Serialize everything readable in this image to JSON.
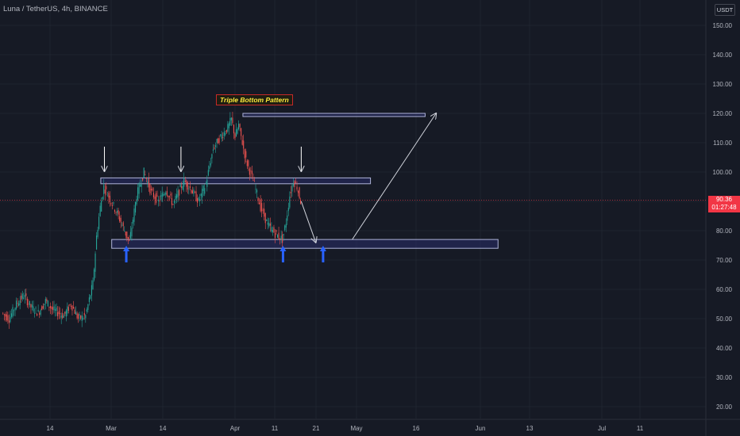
{
  "header": {
    "symbol": "Luna / TetherUS, 4h, BINANCE",
    "currency": "USDT"
  },
  "price_label": {
    "price": "90.36",
    "countdown": "01:27:48"
  },
  "annotation": {
    "pattern": "Triple Bottom Pattern"
  },
  "colors": {
    "background": "#161a25",
    "up_candle": "#26a69a",
    "down_candle": "#ef5350",
    "zone_fill": "#2a2e6a",
    "arrow_blue": "#2962ff",
    "price_line": "#f23645"
  },
  "icons": [
    "down-arrow-icon",
    "up-arrow-icon",
    "projection-arrow-icon"
  ],
  "chart_data": {
    "type": "candlestick",
    "y_axis": {
      "range": [
        10,
        155
      ],
      "ticks": [
        "150.00",
        "140.00",
        "130.00",
        "120.00",
        "110.00",
        "100.00",
        "90.00",
        "80.00",
        "70.00",
        "60.00",
        "50.00",
        "40.00",
        "30.00",
        "20.00"
      ]
    },
    "x_axis": {
      "ticks": [
        "14",
        "Mar",
        "14",
        "Apr",
        "11",
        "21",
        "May",
        "16",
        "Jun",
        "13",
        "Jul",
        "11"
      ]
    },
    "current_price": 90.36,
    "series_path": [
      {
        "date": "2022-02-01",
        "price": 52
      },
      {
        "date": "2022-02-03",
        "price": 50
      },
      {
        "date": "2022-02-05",
        "price": 55
      },
      {
        "date": "2022-02-07",
        "price": 58
      },
      {
        "date": "2022-02-09",
        "price": 54
      },
      {
        "date": "2022-02-11",
        "price": 52
      },
      {
        "date": "2022-02-13",
        "price": 56
      },
      {
        "date": "2022-02-15",
        "price": 53
      },
      {
        "date": "2022-02-18",
        "price": 51
      },
      {
        "date": "2022-02-20",
        "price": 55
      },
      {
        "date": "2022-02-22",
        "price": 50
      },
      {
        "date": "2022-02-24",
        "price": 51
      },
      {
        "date": "2022-02-26",
        "price": 62
      },
      {
        "date": "2022-02-27",
        "price": 78
      },
      {
        "date": "2022-02-28",
        "price": 88
      },
      {
        "date": "2022-03-01",
        "price": 95
      },
      {
        "date": "2022-03-03",
        "price": 90
      },
      {
        "date": "2022-03-05",
        "price": 85
      },
      {
        "date": "2022-03-07",
        "price": 79
      },
      {
        "date": "2022-03-08",
        "price": 76
      },
      {
        "date": "2022-03-10",
        "price": 92
      },
      {
        "date": "2022-03-12",
        "price": 100
      },
      {
        "date": "2022-03-14",
        "price": 93
      },
      {
        "date": "2022-03-16",
        "price": 90
      },
      {
        "date": "2022-03-18",
        "price": 94
      },
      {
        "date": "2022-03-20",
        "price": 89
      },
      {
        "date": "2022-03-23",
        "price": 97
      },
      {
        "date": "2022-03-25",
        "price": 94
      },
      {
        "date": "2022-03-27",
        "price": 90
      },
      {
        "date": "2022-03-29",
        "price": 96
      },
      {
        "date": "2022-03-31",
        "price": 108
      },
      {
        "date": "2022-04-02",
        "price": 112
      },
      {
        "date": "2022-04-04",
        "price": 115
      },
      {
        "date": "2022-04-05",
        "price": 118
      },
      {
        "date": "2022-04-06",
        "price": 112
      },
      {
        "date": "2022-04-07",
        "price": 116
      },
      {
        "date": "2022-04-09",
        "price": 104
      },
      {
        "date": "2022-04-11",
        "price": 97
      },
      {
        "date": "2022-04-13",
        "price": 88
      },
      {
        "date": "2022-04-15",
        "price": 82
      },
      {
        "date": "2022-04-17",
        "price": 79
      },
      {
        "date": "2022-04-19",
        "price": 77
      },
      {
        "date": "2022-04-20",
        "price": 83
      },
      {
        "date": "2022-04-21",
        "price": 92
      },
      {
        "date": "2022-04-22",
        "price": 97
      },
      {
        "date": "2022-04-23",
        "price": 95
      },
      {
        "date": "2022-04-24",
        "price": 90
      }
    ],
    "zones": [
      {
        "name": "resistance",
        "date_start": "2022-02-28",
        "date_end": "2022-05-13",
        "top": 98,
        "bottom": 96
      },
      {
        "name": "support",
        "date_start": "2022-03-03",
        "date_end": "2022-06-17",
        "top": 77,
        "bottom": 74
      },
      {
        "name": "target",
        "date_start": "2022-04-08",
        "date_end": "2022-05-28",
        "top": 120,
        "bottom": 119
      }
    ],
    "projection": [
      {
        "date": "2022-04-24",
        "price": 90
      },
      {
        "date": "2022-04-28",
        "price": 76
      },
      {
        "date": "2022-05-08",
        "price": 77
      },
      {
        "date": "2022-05-31",
        "price": 120
      }
    ],
    "down_arrows": [
      "2022-03-01",
      "2022-03-22",
      "2022-04-24"
    ],
    "up_arrows": [
      "2022-03-07",
      "2022-04-19",
      "2022-04-30"
    ]
  }
}
